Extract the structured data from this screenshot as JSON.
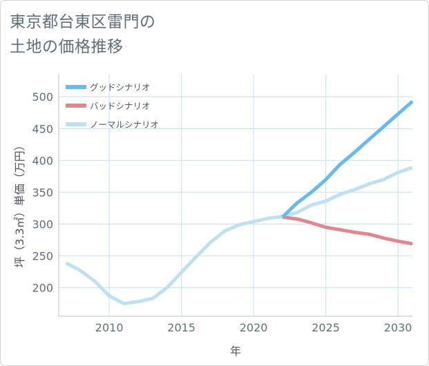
{
  "title_line1": "東京都台東区雷門の",
  "title_line2": "土地の価格推移",
  "chart_data": {
    "type": "line",
    "xlabel": "年",
    "ylabel": "坪（3.3㎡）単価（万円）",
    "xlim": [
      2006.5,
      2031
    ],
    "ylim": [
      155,
      535
    ],
    "xticks": [
      2010,
      2015,
      2020,
      2025,
      2030
    ],
    "yticks": [
      200,
      250,
      300,
      350,
      400,
      450,
      500
    ],
    "grid": true,
    "legend_position": "top-left",
    "series": [
      {
        "name": "グッドシナリオ",
        "color": "#6bb8ea",
        "x": [
          2022,
          2023,
          2024,
          2025,
          2026,
          2027,
          2028,
          2029,
          2030,
          2031
        ],
        "y": [
          311,
          333,
          350,
          370,
          394,
          413,
          433,
          453,
          473,
          493
        ]
      },
      {
        "name": "バッドシナリオ",
        "color": "#e0888f",
        "x": [
          2022,
          2023,
          2024,
          2025,
          2026,
          2027,
          2028,
          2029,
          2030,
          2031
        ],
        "y": [
          311,
          308,
          302,
          295,
          291,
          287,
          284,
          278,
          273,
          269
        ]
      },
      {
        "name": "ノーマルシナリオ",
        "color": "#bfe0f0",
        "x": [
          2007,
          2008,
          2009,
          2010,
          2011,
          2012,
          2013,
          2014,
          2015,
          2016,
          2017,
          2018,
          2019,
          2020,
          2021,
          2022,
          2023,
          2024,
          2025,
          2026,
          2027,
          2028,
          2029,
          2030,
          2031
        ],
        "y": [
          239,
          227,
          210,
          187,
          175,
          178,
          183,
          200,
          224,
          248,
          271,
          289,
          299,
          304,
          309,
          312,
          318,
          330,
          336,
          347,
          354,
          363,
          370,
          381,
          389
        ]
      }
    ]
  }
}
